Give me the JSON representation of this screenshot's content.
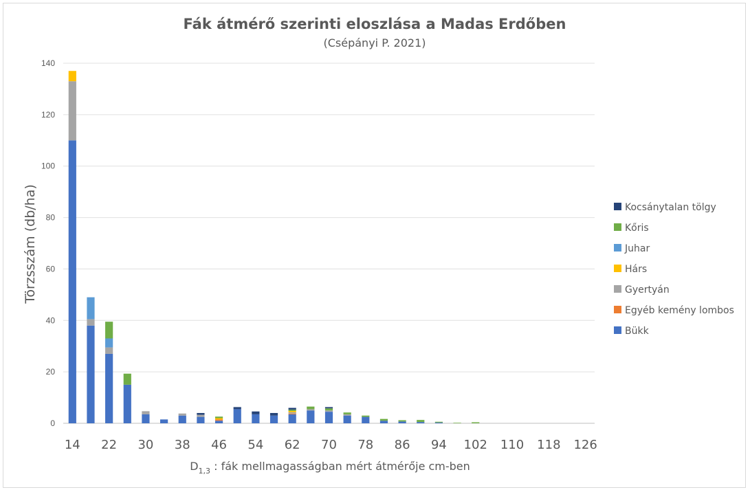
{
  "chart_data": {
    "type": "bar",
    "stacked": true,
    "title": "Fák átmérő szerinti eloszlása a Madas Erdőben",
    "subtitle": "(Csépányi P. 2021)",
    "ylabel": "Törzsszám (db/ha)",
    "xlabel_main": "D",
    "xlabel_sub": "1,3",
    "xlabel_rest": " : fák mellmagasságban mért átmérője cm-ben",
    "ylim": [
      0,
      140
    ],
    "yticks": [
      0,
      20,
      40,
      60,
      80,
      100,
      120,
      140
    ],
    "grid": true,
    "legend_position": "right",
    "categories": [
      14,
      18,
      22,
      26,
      30,
      34,
      38,
      42,
      46,
      50,
      54,
      58,
      62,
      66,
      70,
      74,
      78,
      82,
      86,
      90,
      94,
      98,
      102,
      106,
      110,
      114,
      118,
      122,
      126
    ],
    "tick_labels": [
      "14",
      "",
      "22",
      "",
      "30",
      "",
      "38",
      "",
      "46",
      "",
      "54",
      "",
      "62",
      "",
      "70",
      "",
      "78",
      "",
      "86",
      "",
      "94",
      "",
      "102",
      "",
      "110",
      "",
      "118",
      "",
      "126"
    ],
    "series": [
      {
        "name": "Bükk",
        "color": "#4472c4",
        "values": [
          110,
          38,
          27,
          15,
          3.5,
          1.5,
          3,
          2.5,
          1,
          5.5,
          3.5,
          3,
          3.5,
          5,
          4.5,
          3,
          2.5,
          1,
          0.7,
          0.5,
          0.3,
          0,
          0,
          0,
          0,
          0,
          0,
          0,
          0
        ]
      },
      {
        "name": "Egyéb kemény lombos",
        "color": "#ed7d31",
        "values": [
          0,
          0,
          0,
          0,
          0,
          0,
          0,
          0,
          0.5,
          0,
          0,
          0,
          0.3,
          0,
          0,
          0,
          0,
          0,
          0,
          0,
          0,
          0,
          0,
          0,
          0,
          0,
          0,
          0,
          0
        ]
      },
      {
        "name": "Gyertyán",
        "color": "#a5a5a5",
        "values": [
          23,
          2.5,
          2.5,
          0,
          1.2,
          0,
          0.8,
          0.8,
          0,
          0,
          0,
          0,
          0.5,
          0.5,
          0.5,
          0.5,
          0,
          0,
          0,
          0,
          0,
          0,
          0,
          0,
          0,
          0,
          0,
          0,
          0
        ]
      },
      {
        "name": "Hárs",
        "color": "#ffc000",
        "values": [
          4,
          0,
          0,
          0,
          0,
          0,
          0,
          0,
          0.5,
          0,
          0,
          0,
          0.5,
          0,
          0,
          0,
          0,
          0,
          0,
          0,
          0,
          0,
          0,
          0,
          0,
          0,
          0,
          0,
          0
        ]
      },
      {
        "name": "Juhar",
        "color": "#5b9bd5",
        "values": [
          0,
          8.5,
          3.5,
          0,
          0,
          0,
          0,
          0,
          0,
          0,
          0,
          0,
          0,
          0,
          0,
          0,
          0,
          0,
          0,
          0,
          0,
          0,
          0,
          0,
          0,
          0,
          0,
          0,
          0
        ]
      },
      {
        "name": "Kőris",
        "color": "#70ad47",
        "values": [
          0,
          0,
          6.5,
          4.3,
          0,
          0,
          0,
          0,
          0.6,
          0,
          0,
          0,
          0.5,
          1,
          0.8,
          0.7,
          0.5,
          0.7,
          0.5,
          0.8,
          0.3,
          0.2,
          0.4,
          0,
          0,
          0,
          0,
          0,
          0
        ]
      },
      {
        "name": "Kocsánytalan tölgy",
        "color": "#264478",
        "values": [
          0,
          0,
          0,
          0,
          0,
          0,
          0,
          0.7,
          0,
          0.8,
          1.1,
          1,
          0.7,
          0,
          0.5,
          0,
          0,
          0,
          0,
          0,
          0,
          0,
          0,
          0,
          0,
          0,
          0,
          0,
          0
        ]
      }
    ],
    "legend_order": [
      "Kocsánytalan tölgy",
      "Kőris",
      "Juhar",
      "Hárs",
      "Gyertyán",
      "Egyéb kemény lombos",
      "Bükk"
    ]
  }
}
